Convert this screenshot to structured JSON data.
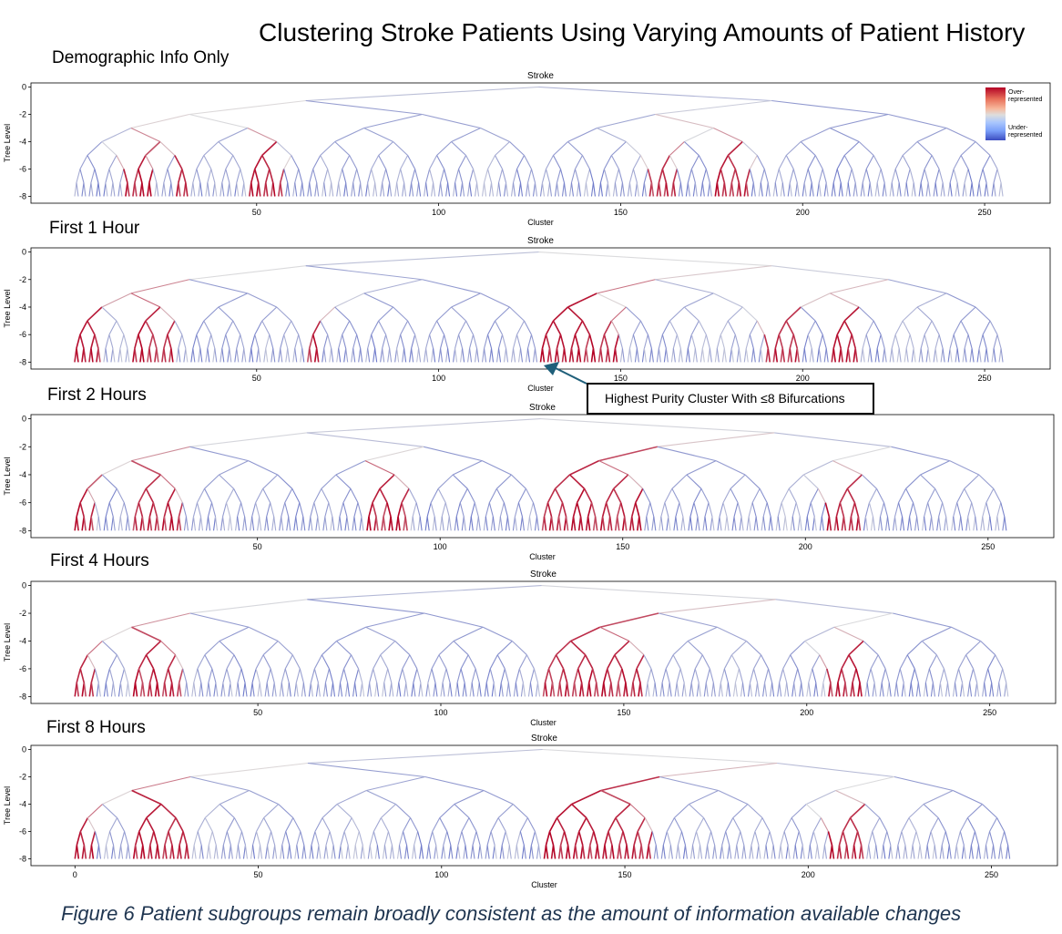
{
  "title": "Clustering Stroke Patients Using Varying Amounts of Patient History",
  "caption": "Figure 6 Patient subgroups remain broadly consistent as the amount of information available changes",
  "callout": {
    "text": "Highest Purity Cluster With ≤8 Bifurcations"
  },
  "legend": {
    "over_label": "Over-\nrepresented",
    "under_label": "Under-\nrepresented",
    "colors": [
      "#b40426",
      "#dddddd",
      "#3b4cc0"
    ]
  },
  "chart_data": [
    {
      "type": "tree",
      "heading": "Demographic Info Only",
      "title": "Stroke",
      "xlabel": "Cluster",
      "ylabel": "Tree Level",
      "xlim": [
        -12,
        268
      ],
      "ylim": [
        -8.5,
        0.3
      ],
      "xticks": [
        50,
        100,
        150,
        200,
        250
      ],
      "yticks": [
        0,
        -2,
        -4,
        -6,
        -8
      ],
      "depth": 8,
      "leaf_min_x": 0,
      "leaf_max_x": 255,
      "over_represented_leaf_ranges": [
        [
          14,
          22
        ],
        [
          28,
          32
        ],
        [
          48,
          58
        ],
        [
          158,
          166
        ],
        [
          176,
          186
        ]
      ]
    },
    {
      "type": "tree",
      "heading": "First 1 Hour",
      "title": "Stroke",
      "xlabel": "Cluster",
      "ylabel": "Tree Level",
      "xlim": [
        -12,
        268
      ],
      "ylim": [
        -8.5,
        0.3
      ],
      "xticks": [
        50,
        100,
        150,
        200,
        250
      ],
      "yticks": [
        0,
        -2,
        -4,
        -6,
        -8
      ],
      "depth": 8,
      "leaf_min_x": 0,
      "leaf_max_x": 255,
      "over_represented_leaf_ranges": [
        [
          0,
          8
        ],
        [
          16,
          28
        ],
        [
          64,
          68
        ],
        [
          128,
          150
        ],
        [
          190,
          200
        ],
        [
          208,
          216
        ]
      ]
    },
    {
      "type": "tree",
      "heading": "First 2 Hours",
      "title": "Stroke",
      "xlabel": "Cluster",
      "ylabel": "Tree Level",
      "xlim": [
        -12,
        268
      ],
      "ylim": [
        -8.5,
        0.3
      ],
      "xticks": [
        50,
        100,
        150,
        200,
        250
      ],
      "yticks": [
        0,
        -2,
        -4,
        -6,
        -8
      ],
      "depth": 8,
      "leaf_min_x": 0,
      "leaf_max_x": 255,
      "over_represented_leaf_ranges": [
        [
          0,
          6
        ],
        [
          16,
          30
        ],
        [
          80,
          92
        ],
        [
          128,
          156
        ],
        [
          206,
          216
        ]
      ]
    },
    {
      "type": "tree",
      "heading": "First 4 Hours",
      "title": "Stroke",
      "xlabel": "Cluster",
      "ylabel": "Tree Level",
      "xlim": [
        -12,
        268
      ],
      "ylim": [
        -8.5,
        0.3
      ],
      "xticks": [
        50,
        100,
        150,
        200,
        250
      ],
      "yticks": [
        0,
        -2,
        -4,
        -6,
        -8
      ],
      "depth": 8,
      "leaf_min_x": 0,
      "leaf_max_x": 255,
      "over_represented_leaf_ranges": [
        [
          0,
          6
        ],
        [
          16,
          30
        ],
        [
          128,
          156
        ],
        [
          206,
          216
        ]
      ]
    },
    {
      "type": "tree",
      "heading": "First 8 Hours",
      "title": "Stroke",
      "xlabel": "Cluster",
      "ylabel": "Tree Level",
      "xlim": [
        -12,
        268
      ],
      "ylim": [
        -8.5,
        0.3
      ],
      "xticks": [
        0,
        50,
        100,
        150,
        200,
        250
      ],
      "yticks": [
        0,
        -2,
        -4,
        -6,
        -8
      ],
      "depth": 8,
      "leaf_min_x": 0,
      "leaf_max_x": 255,
      "over_represented_leaf_ranges": [
        [
          0,
          6
        ],
        [
          16,
          32
        ],
        [
          128,
          158
        ],
        [
          206,
          216
        ]
      ]
    }
  ]
}
